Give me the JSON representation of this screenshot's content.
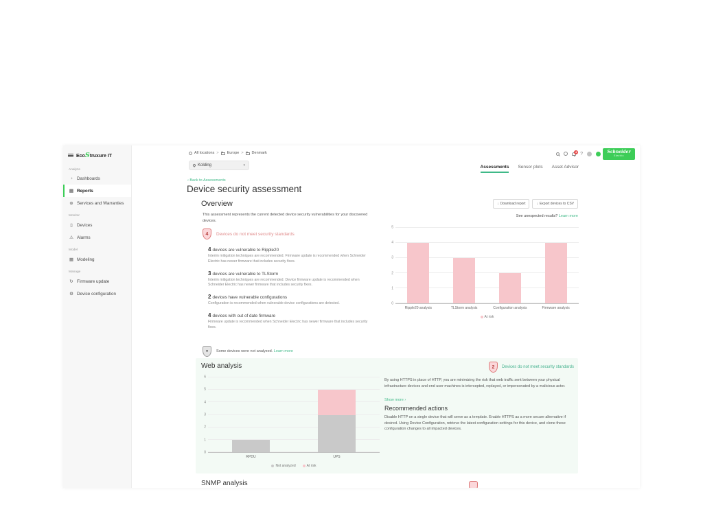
{
  "colors": {
    "accent_green": "#3dcd58",
    "link_green": "#3fb988",
    "risk_red": "#e08c8c",
    "risk_pink": "#f7c6cb",
    "neutral_gray": "#c9c9c9",
    "teal_label": "#44b28e"
  },
  "sidebar": {
    "brand": {
      "prefix": "Eco",
      "glyph": "S",
      "suffix": "truxure IT"
    },
    "sections": [
      {
        "label": "Analyze",
        "items": [
          {
            "label": "Dashboards"
          },
          {
            "label": "Reports"
          },
          {
            "label": "Services and Warranties"
          }
        ]
      },
      {
        "label": "Monitor",
        "items": [
          {
            "label": "Devices"
          },
          {
            "label": "Alarms"
          }
        ]
      },
      {
        "label": "Model",
        "items": [
          {
            "label": "Modeling"
          }
        ]
      },
      {
        "label": "Manage",
        "items": [
          {
            "label": "Firmware update"
          },
          {
            "label": "Device configuration"
          }
        ]
      }
    ]
  },
  "topbar": {
    "breadcrumb": [
      "All locations",
      "Europe",
      "Denmark"
    ],
    "separator": ">",
    "location": "Kolding",
    "chevron": "▾",
    "notification_count": "4",
    "help_glyph": "?",
    "logo_line1": "Schneider",
    "logo_line2": "Electric"
  },
  "tabs": [
    {
      "label": "Assessments"
    },
    {
      "label": "Sensor plots"
    },
    {
      "label": "Asset Advisor"
    }
  ],
  "page": {
    "back_arrow": "‹",
    "back": "Back to Assessments",
    "title": "Device security assessment"
  },
  "overview": {
    "heading": "Overview",
    "download_icon": "↓",
    "download_button": "Download report",
    "export_button": "Export devices to CSV",
    "description": "This assessment represents the current detected device security vulnerabilities for your discovered devices.",
    "see_unexpected": "See unexpected results?",
    "learn_more": "Learn more",
    "badge": {
      "count": "4",
      "label": "Devices do not meet security standards"
    },
    "items": [
      {
        "count": "4",
        "title": "devices are vulnerable to Ripple20",
        "description": "Interim mitigation techniques are recommended. Firmware update is recommended when Schneider Electric has newer firmware that includes security fixes."
      },
      {
        "count": "3",
        "title": "devices are vulnerable to TLStorm",
        "description": "Interim mitigation techniques are recommended. Device firmware update is recommended when Schneider Electric has newer firmware that includes security fixes."
      },
      {
        "count": "2",
        "title": "devices have vulnerable configurations",
        "description": "Configuration is recommended when vulnerable device configurations are detected."
      },
      {
        "count": "4",
        "title": "devices with out of date firmware",
        "description": "Firmware update is recommended when Schneider Electric has newer firmware that includes security fixes."
      }
    ],
    "not_analyzed_note": "Some devices were not analyzed.",
    "not_analyzed_link": "Learn more",
    "gray_shield_glyph": "●"
  },
  "web_analysis": {
    "heading": "Web analysis",
    "badge": {
      "count": "2",
      "label": "Devices do not meet security standards"
    },
    "description": "By using HTTPS in place of HTTP, you are minimizing the risk that web traffic sent between your physical infrastructure devices and end user machines is intercepted, replayed, or impersonated by a malicious actor.",
    "show_more": "Show more",
    "show_more_arrow": "›",
    "rec_heading": "Recommended actions",
    "rec_text": "Disable HTTP on a single device that will serve as a template. Enable HTTPS as a more secure alternative if desired. Using Device Configuration, retrieve the latest configuration settings for this device, and clone these configuration changes to all impacted devices."
  },
  "snmp": {
    "heading": "SNMP analysis",
    "badge_count": ""
  },
  "chart_data": [
    {
      "type": "bar",
      "categories": [
        "Ripple20 analysis",
        "TLStorm analysis",
        "Configuration analysis",
        "Firmware analysis"
      ],
      "series": [
        {
          "name": "At risk",
          "color": "#f7c6cb",
          "values": [
            4,
            3,
            2,
            4
          ]
        }
      ],
      "ylim": [
        0,
        5
      ],
      "yticks": [
        0,
        1,
        2,
        3,
        4,
        5
      ],
      "grid": true,
      "legend_position": "bottom"
    },
    {
      "type": "bar",
      "stacked": true,
      "categories": [
        "RPDU",
        "UPS"
      ],
      "series": [
        {
          "name": "Not analyzed",
          "color": "#c9c9c9",
          "values": [
            1,
            3
          ]
        },
        {
          "name": "At risk",
          "color": "#f7c6cb",
          "values": [
            0,
            2
          ]
        }
      ],
      "ylim": [
        0,
        6
      ],
      "yticks": [
        0,
        1,
        2,
        3,
        4,
        5,
        6
      ],
      "grid": true,
      "legend_position": "bottom"
    }
  ]
}
